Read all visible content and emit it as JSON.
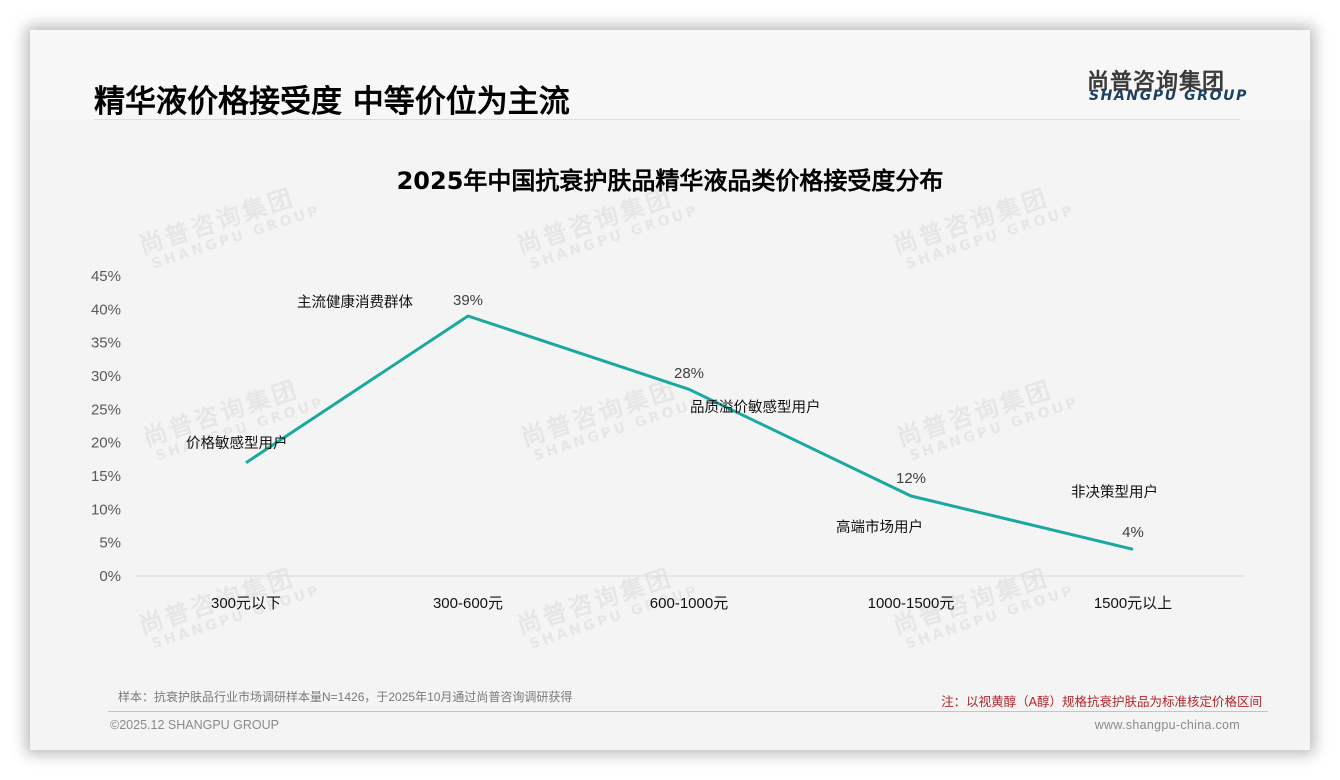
{
  "page": {
    "title": "精华液价格接受度 中等价位为主流",
    "logo": {
      "cn": "尚普咨询集团",
      "en": "SHANGPU GROUP"
    },
    "watermark": {
      "cn": "尚普咨询集团",
      "en": "SHANGPU GROUP"
    },
    "footer": {
      "sample_note": "样本：抗衰护肤品行业市场调研样本量N=1426，于2025年10月通过尚普咨询调研获得",
      "annotation": "注：以视黄醇（A醇）规格抗衰护肤品为标准核定价格区间",
      "copyright": "©2025.12 SHANGPU GROUP",
      "website": "www.shangpu-china.com"
    }
  },
  "colors": {
    "line": "#1aa9a0",
    "annotation_red": "#b3262b",
    "logo_blue": "#1d3f66",
    "axis_text": "#595959"
  },
  "chart_data": {
    "type": "line",
    "title": "2025年中国抗衰护肤品精华液品类价格接受度分布",
    "xlabel": "",
    "ylabel": "",
    "categories": [
      "300元以下",
      "300-600元",
      "600-1000元",
      "1000-1500元",
      "1500元以上"
    ],
    "series": [
      {
        "name": "价格接受度",
        "values": [
          17,
          39,
          28,
          12,
          4
        ],
        "data_labels": [
          "",
          "39%",
          "28%",
          "12%",
          "4%"
        ]
      }
    ],
    "annotations": [
      "价格敏感型用户",
      "主流健康消费群体",
      "品质溢价敏感型用户",
      "高端市场用户",
      "非决策型用户"
    ],
    "yticks": [
      "0%",
      "5%",
      "10%",
      "15%",
      "20%",
      "25%",
      "30%",
      "35%",
      "40%",
      "45%"
    ],
    "ylim": [
      0,
      45
    ],
    "grid": false,
    "legend": "none"
  }
}
